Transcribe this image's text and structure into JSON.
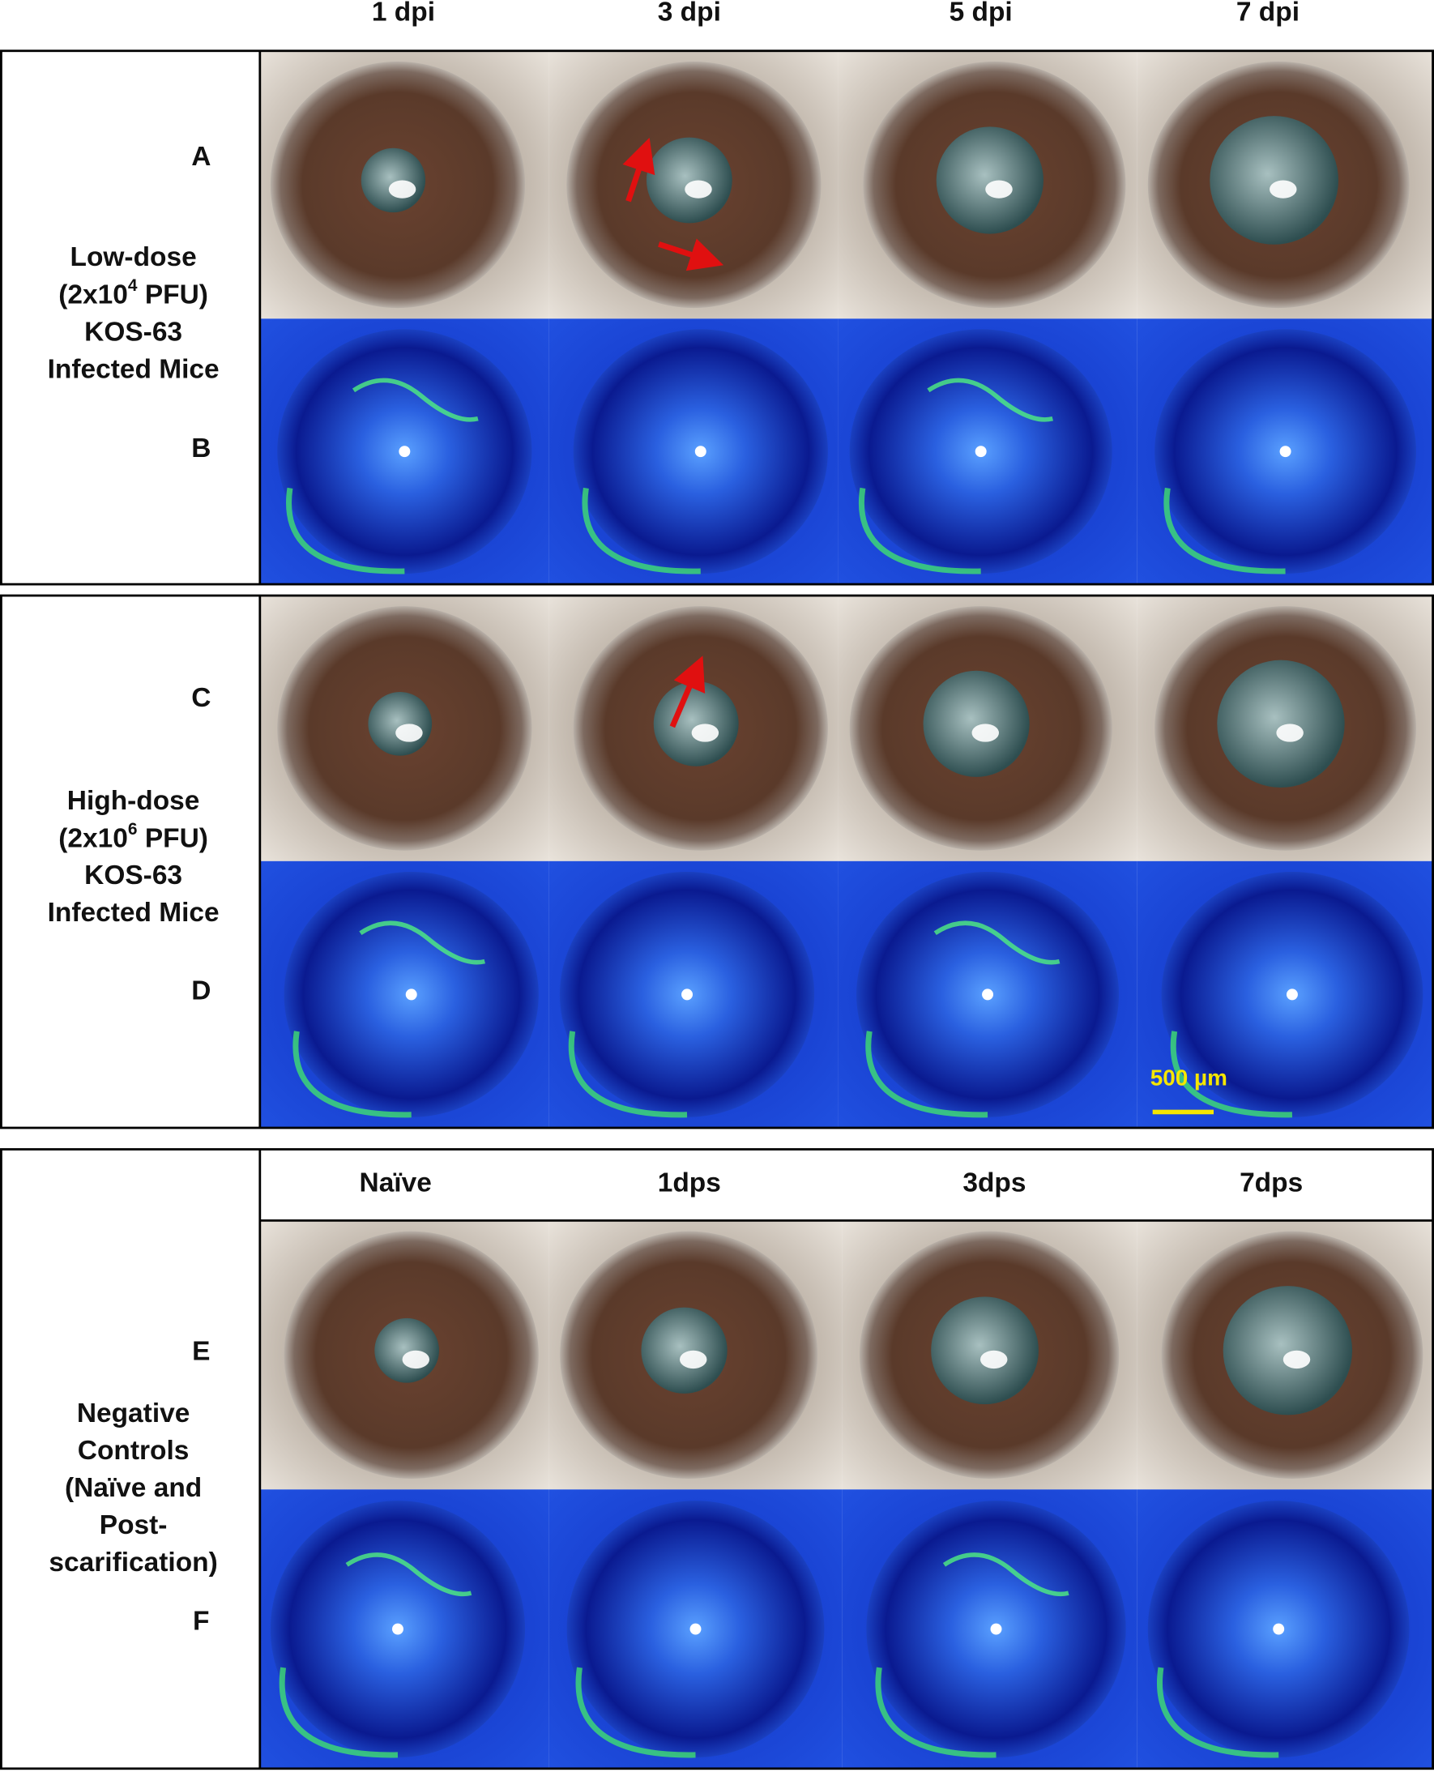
{
  "column_headers": [
    "1 dpi",
    "3 dpi",
    "5 dpi",
    "7 dpi"
  ],
  "panels": [
    {
      "row_labels": [
        "A",
        "B"
      ],
      "group_label": [
        "Low-dose",
        [
          "(2x10",
          "4",
          "  PFU)"
        ],
        "KOS-63",
        "Infected Mice"
      ]
    },
    {
      "row_labels": [
        "C",
        "D"
      ],
      "group_label": [
        "High-dose",
        [
          "(2x10",
          "6",
          " PFU)"
        ],
        "KOS-63",
        "Infected Mice"
      ]
    },
    {
      "row_labels": [
        "E",
        "F"
      ],
      "group_label": [
        "Negative",
        "Controls",
        "(Naïve and",
        "Post-",
        "scarification)"
      ]
    }
  ],
  "control_headers": [
    "Naïve",
    "1dps",
    "3dps",
    "7dps"
  ],
  "scale_bar": "500 µm"
}
